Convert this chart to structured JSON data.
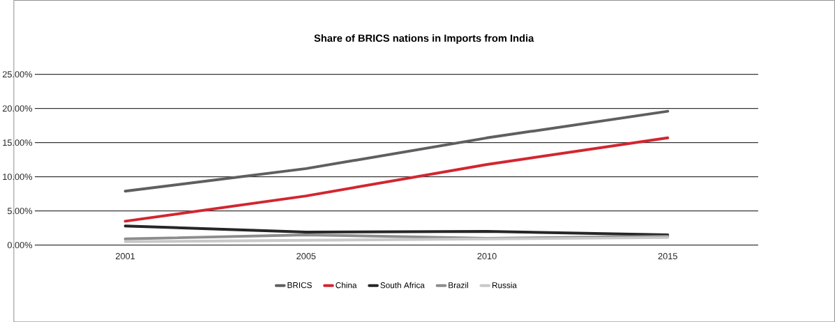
{
  "chart_data": {
    "type": "line",
    "title": "Share of BRICS nations in Imports from India",
    "categories": [
      "2001",
      "2005",
      "2010",
      "2015"
    ],
    "series": [
      {
        "name": "BRICS",
        "color": "#5f5f5f",
        "values": [
          7.9,
          11.2,
          15.7,
          19.6
        ]
      },
      {
        "name": "China",
        "color": "#d22630",
        "values": [
          3.5,
          7.2,
          11.8,
          15.7
        ]
      },
      {
        "name": "South Africa",
        "color": "#262626",
        "values": [
          2.8,
          1.9,
          2.0,
          1.5
        ]
      },
      {
        "name": "Brazil",
        "color": "#8c8c8c",
        "values": [
          0.9,
          1.5,
          1.0,
          1.3
        ]
      },
      {
        "name": "Russia",
        "color": "#c8c8c8",
        "values": [
          0.5,
          0.7,
          0.9,
          1.1
        ]
      }
    ],
    "ylim": [
      0,
      25
    ],
    "yticks": [
      {
        "value": 0,
        "label": "0.00%"
      },
      {
        "value": 5,
        "label": "5.00%"
      },
      {
        "value": 10,
        "label": "10.00%"
      },
      {
        "value": 15,
        "label": "15.00%"
      },
      {
        "value": 20,
        "label": "20.00%"
      },
      {
        "value": 25,
        "label": "25.00%"
      }
    ],
    "grid": "y",
    "legend": "bottom",
    "marker": "none",
    "line_style": "solid"
  }
}
